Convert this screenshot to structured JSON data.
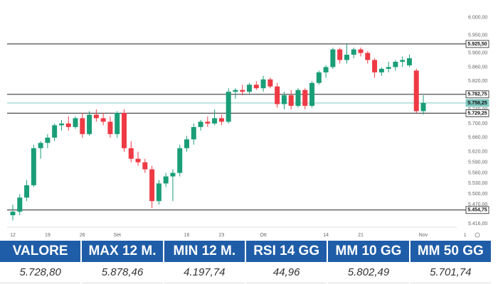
{
  "chart_data": {
    "type": "candlestick",
    "categories": [
      "12",
      null,
      null,
      null,
      null,
      "19",
      null,
      null,
      null,
      null,
      "26",
      null,
      null,
      null,
      null,
      "Set",
      null,
      null,
      null,
      null,
      null,
      null,
      null,
      null,
      null,
      "16",
      null,
      null,
      null,
      null,
      "23",
      null,
      null,
      null,
      null,
      null,
      "Ott",
      null,
      null,
      null,
      null,
      null,
      null,
      null,
      null,
      "14",
      null,
      null,
      null,
      null,
      "21",
      null,
      null,
      null,
      null,
      null,
      null,
      null,
      null,
      "Nov",
      null,
      null,
      null,
      null,
      null,
      "1"
    ],
    "open": [
      5440,
      5450,
      5490,
      5525,
      5630,
      5645,
      5660,
      5695,
      5700,
      5690,
      5715,
      5670,
      5725,
      5715,
      5705,
      5670,
      5730,
      5630,
      5600,
      5590,
      5570,
      5480,
      5530,
      5550,
      5560,
      5630,
      5655,
      5690,
      5705,
      5700,
      5715,
      5705,
      5790,
      5795,
      5790,
      5810,
      5800,
      5825,
      5805,
      5755,
      5780,
      5750,
      5795,
      5750,
      5815,
      5845,
      5860,
      5910,
      5880,
      5895,
      5910,
      5900,
      5880,
      5845,
      5855,
      5860,
      5875,
      5865,
      5850,
      5735,
      null,
      null,
      null,
      null,
      null,
      null
    ],
    "high": [
      5470,
      5500,
      5540,
      5640,
      5650,
      5670,
      5700,
      5710,
      5720,
      5720,
      5730,
      5735,
      5740,
      5730,
      5720,
      5735,
      5740,
      5650,
      5620,
      5600,
      5580,
      5540,
      5560,
      5570,
      5640,
      5665,
      5700,
      5710,
      5720,
      5740,
      5725,
      5800,
      5800,
      5810,
      5815,
      5820,
      5835,
      5830,
      5815,
      5790,
      5795,
      5800,
      5800,
      5820,
      5850,
      5865,
      5915,
      5915,
      5925,
      5915,
      5915,
      5905,
      5885,
      5860,
      5875,
      5880,
      5890,
      5895,
      5855,
      5780,
      null,
      null,
      null,
      null,
      null,
      null
    ],
    "low": [
      5425,
      5440,
      5480,
      5520,
      5600,
      5630,
      5650,
      5680,
      5680,
      5685,
      5660,
      5665,
      5705,
      5695,
      5660,
      5660,
      5620,
      5590,
      5580,
      5560,
      5460,
      5470,
      5520,
      5480,
      5550,
      5620,
      5640,
      5680,
      5690,
      5695,
      5695,
      5700,
      5770,
      5780,
      5785,
      5795,
      5790,
      5800,
      5745,
      5740,
      5740,
      5745,
      5740,
      5745,
      5810,
      5830,
      5855,
      5870,
      5870,
      5885,
      5890,
      5870,
      5830,
      5835,
      5845,
      5850,
      5860,
      5860,
      5730,
      5725,
      null,
      null,
      null,
      null,
      null,
      null
    ],
    "close": [
      5450,
      5490,
      5525,
      5630,
      5645,
      5660,
      5695,
      5700,
      5690,
      5715,
      5670,
      5725,
      5715,
      5705,
      5670,
      5730,
      5630,
      5600,
      5590,
      5570,
      5480,
      5530,
      5550,
      5560,
      5630,
      5655,
      5690,
      5705,
      5700,
      5715,
      5705,
      5790,
      5795,
      5790,
      5810,
      5800,
      5825,
      5805,
      5755,
      5780,
      5750,
      5795,
      5750,
      5815,
      5845,
      5860,
      5910,
      5880,
      5895,
      5910,
      5900,
      5880,
      5845,
      5855,
      5860,
      5875,
      5880,
      5885,
      5735,
      5758.25,
      null,
      null,
      null,
      null,
      null,
      null
    ],
    "up_color": "#1a9e78",
    "down_color": "#ee3a45",
    "ylim": [
      5406,
      6030
    ],
    "yticks": [
      {
        "value": 6000,
        "label": "6.000,00"
      },
      {
        "value": 5950,
        "label": "5.950,00"
      },
      {
        "value": 5900,
        "label": "5.900,00"
      },
      {
        "value": 5860,
        "label": "5.860,00"
      },
      {
        "value": 5820,
        "label": "5.820,00"
      },
      {
        "value": 5740,
        "label": "5.740,00"
      },
      {
        "value": 5700,
        "label": "5.700,00"
      },
      {
        "value": 5660,
        "label": "5.660,00"
      },
      {
        "value": 5620,
        "label": "5.620,00"
      },
      {
        "value": 5590,
        "label": "5.590,00"
      },
      {
        "value": 5560,
        "label": "5.560,00"
      },
      {
        "value": 5530,
        "label": "5.530,00"
      },
      {
        "value": 5500,
        "label": "5.500,00"
      },
      {
        "value": 5470,
        "label": "5.470,00"
      },
      {
        "value": 5416,
        "label": "5.416,00"
      }
    ],
    "levels": [
      {
        "value": 5925.5,
        "label": "5.925,50"
      },
      {
        "value": 5782.75,
        "label": "5.782,75"
      },
      {
        "value": 5729.25,
        "label": "5.729,25"
      },
      {
        "value": 5454.75,
        "label": "5.454,75"
      }
    ],
    "level_color": "#222222",
    "current": {
      "value": 5758.25,
      "label": "5.758,25"
    },
    "current_color": "#7fc8c0",
    "grid": false
  },
  "table": {
    "headers": [
      "VALORE",
      "MAX 12 M.",
      "MIN 12 M.",
      "RSI 14 GG",
      "MM 10 GG",
      "MM 50 GG"
    ],
    "rows": [
      [
        "5.728,80",
        "5.878,46",
        "4.197,74",
        "44,96",
        "5.802,49",
        "5.701,74"
      ]
    ]
  }
}
